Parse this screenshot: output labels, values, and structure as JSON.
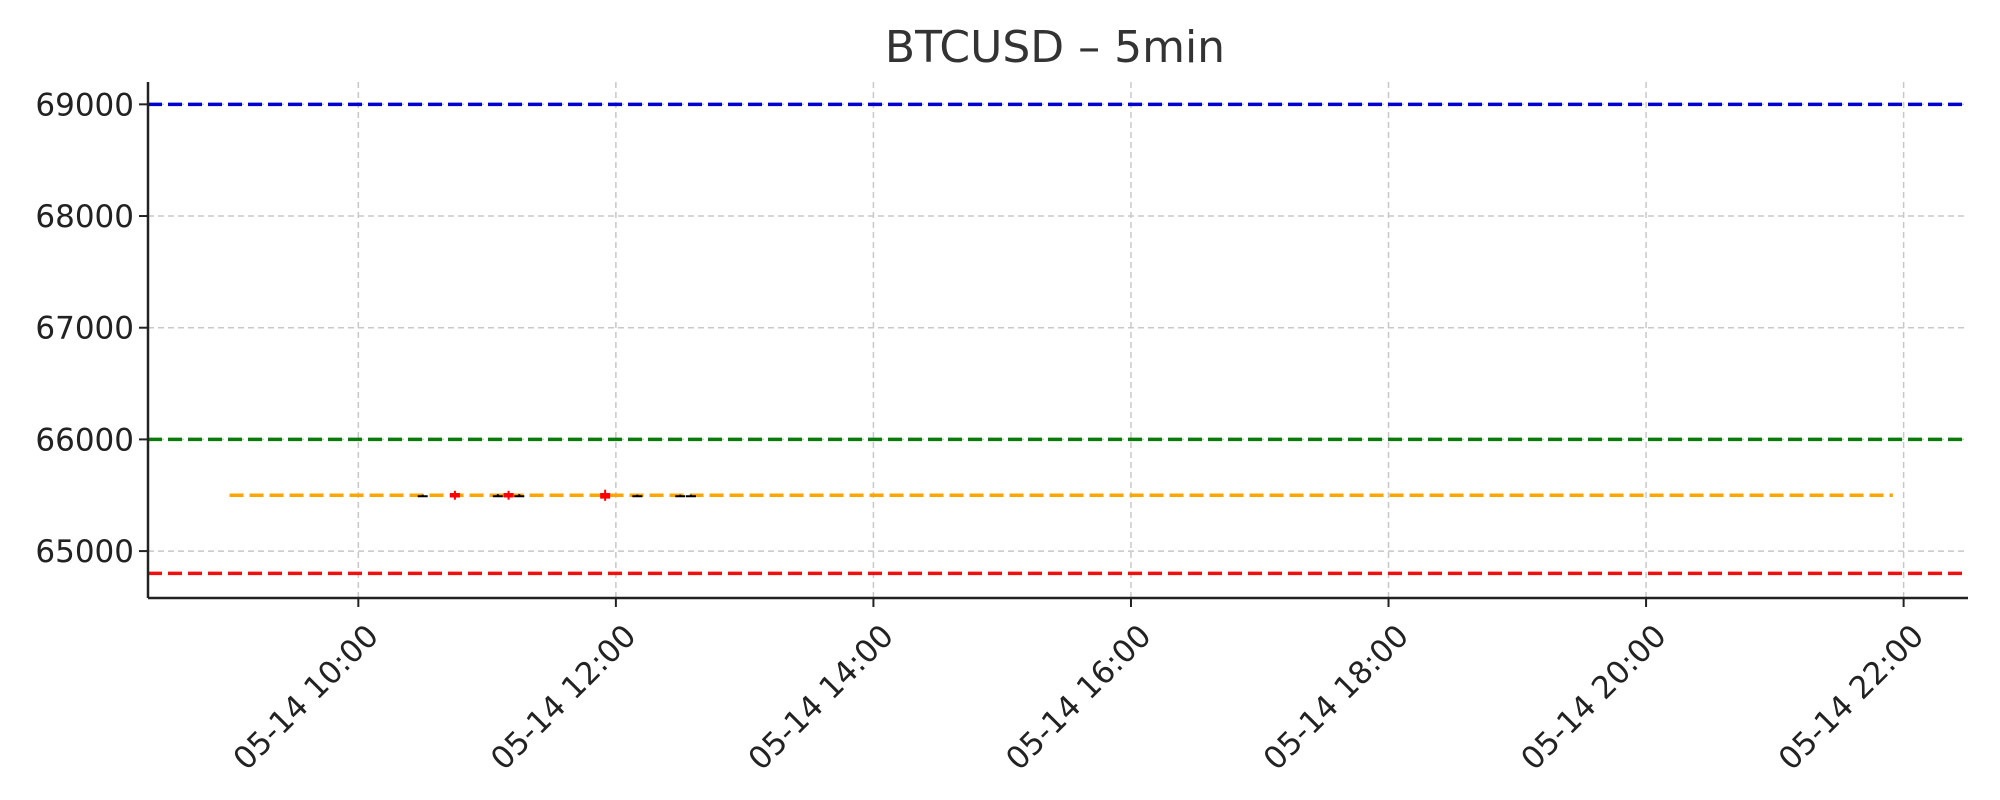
{
  "chart_data": {
    "type": "line",
    "title": "BTCUSD – 5min",
    "xlabel": "",
    "ylabel": "",
    "x_range": [
      "2024-05-14 08:22",
      "2024-05-14 22:30"
    ],
    "ylim": [
      64580,
      69200
    ],
    "x_ticks": [
      {
        "time": "2024-05-14 10:00",
        "label": "05-14 10:00"
      },
      {
        "time": "2024-05-14 12:00",
        "label": "05-14 12:00"
      },
      {
        "time": "2024-05-14 14:00",
        "label": "05-14 14:00"
      },
      {
        "time": "2024-05-14 16:00",
        "label": "05-14 16:00"
      },
      {
        "time": "2024-05-14 18:00",
        "label": "05-14 18:00"
      },
      {
        "time": "2024-05-14 20:00",
        "label": "05-14 20:00"
      },
      {
        "time": "2024-05-14 22:00",
        "label": "05-14 22:00"
      }
    ],
    "y_ticks": [
      {
        "value": 65000,
        "label": "65000"
      },
      {
        "value": 66000,
        "label": "66000"
      },
      {
        "value": 67000,
        "label": "67000"
      },
      {
        "value": 68000,
        "label": "68000"
      },
      {
        "value": 69000,
        "label": "69000"
      }
    ],
    "grid": true,
    "levels": [
      {
        "value": 69000,
        "color": "#0000cc"
      },
      {
        "value": 66000,
        "color": "#0a7a0a"
      },
      {
        "value": 64800,
        "color": "#ee1111"
      },
      {
        "value": 65500,
        "color": "#ffa500",
        "x_start": "2024-05-14 09:00",
        "x_end": "2024-05-14 21:55"
      }
    ],
    "candles": [
      {
        "time": "2024-05-14 10:30",
        "open": 65500,
        "high": 65505,
        "low": 65495,
        "close": 65500,
        "color": "#000000"
      },
      {
        "time": "2024-05-14 10:45",
        "open": 65520,
        "high": 65540,
        "low": 65460,
        "close": 65480,
        "color": "#ff0000"
      },
      {
        "time": "2024-05-14 11:05",
        "open": 65500,
        "high": 65510,
        "low": 65490,
        "close": 65500,
        "color": "#000000"
      },
      {
        "time": "2024-05-14 11:10",
        "open": 65520,
        "high": 65540,
        "low": 65460,
        "close": 65480,
        "color": "#ff0000"
      },
      {
        "time": "2024-05-14 11:15",
        "open": 65500,
        "high": 65510,
        "low": 65490,
        "close": 65500,
        "color": "#000000"
      },
      {
        "time": "2024-05-14 11:55",
        "open": 65520,
        "high": 65550,
        "low": 65450,
        "close": 65470,
        "color": "#ff0000"
      },
      {
        "time": "2024-05-14 12:10",
        "open": 65500,
        "high": 65505,
        "low": 65495,
        "close": 65500,
        "color": "#000000"
      },
      {
        "time": "2024-05-14 12:30",
        "open": 65500,
        "high": 65505,
        "low": 65495,
        "close": 65500,
        "color": "#000000"
      },
      {
        "time": "2024-05-14 12:35",
        "open": 65500,
        "high": 65505,
        "low": 65495,
        "close": 65500,
        "color": "#000000"
      }
    ]
  }
}
